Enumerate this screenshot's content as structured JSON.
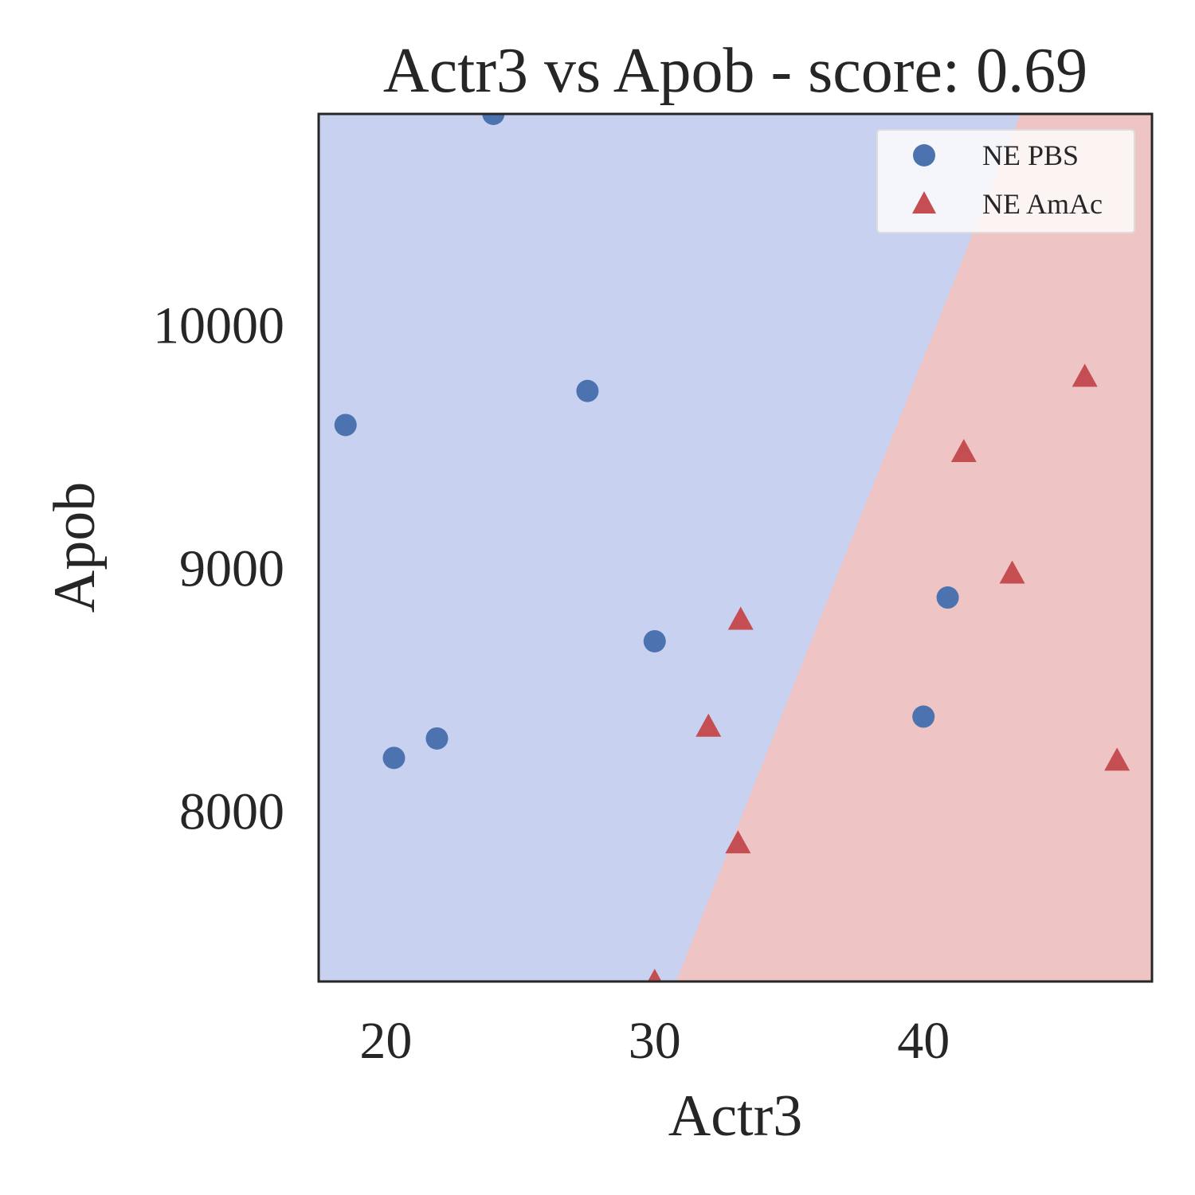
{
  "chart_data": {
    "type": "scatter",
    "title": "Actr3 vs Apob - score: 0.69",
    "xlabel": "Actr3",
    "ylabel": "Apob",
    "xlim": [
      17.5,
      48.5
    ],
    "ylim": [
      7300,
      10870
    ],
    "xticks": [
      20,
      30,
      40
    ],
    "yticks": [
      8000,
      9000,
      10000
    ],
    "grid": false,
    "legend_position": "top-right",
    "decision_boundary": {
      "region_below_right": "NE AmAc",
      "region_above_left": "NE PBS",
      "line": [
        [
          30.8,
          7300
        ],
        [
          43.6,
          10870
        ]
      ]
    },
    "series": [
      {
        "name": "NE PBS",
        "marker": "circle",
        "color": "#4c72b0",
        "region_color": "#c8d1f0",
        "points": [
          {
            "x": 18.5,
            "y": 9590
          },
          {
            "x": 20.3,
            "y": 8220
          },
          {
            "x": 21.9,
            "y": 8300
          },
          {
            "x": 24.0,
            "y": 10870
          },
          {
            "x": 27.5,
            "y": 9730
          },
          {
            "x": 30.0,
            "y": 8700
          },
          {
            "x": 40.0,
            "y": 8390
          },
          {
            "x": 40.9,
            "y": 8880
          }
        ]
      },
      {
        "name": "NE AmAc",
        "marker": "triangle",
        "color": "#c44e52",
        "region_color": "#eec4c4",
        "points": [
          {
            "x": 30.0,
            "y": 7300
          },
          {
            "x": 32.0,
            "y": 8350
          },
          {
            "x": 33.1,
            "y": 7870
          },
          {
            "x": 33.2,
            "y": 8790
          },
          {
            "x": 41.5,
            "y": 9480
          },
          {
            "x": 43.3,
            "y": 8980
          },
          {
            "x": 46.0,
            "y": 9790
          },
          {
            "x": 47.2,
            "y": 8210
          }
        ]
      }
    ]
  }
}
